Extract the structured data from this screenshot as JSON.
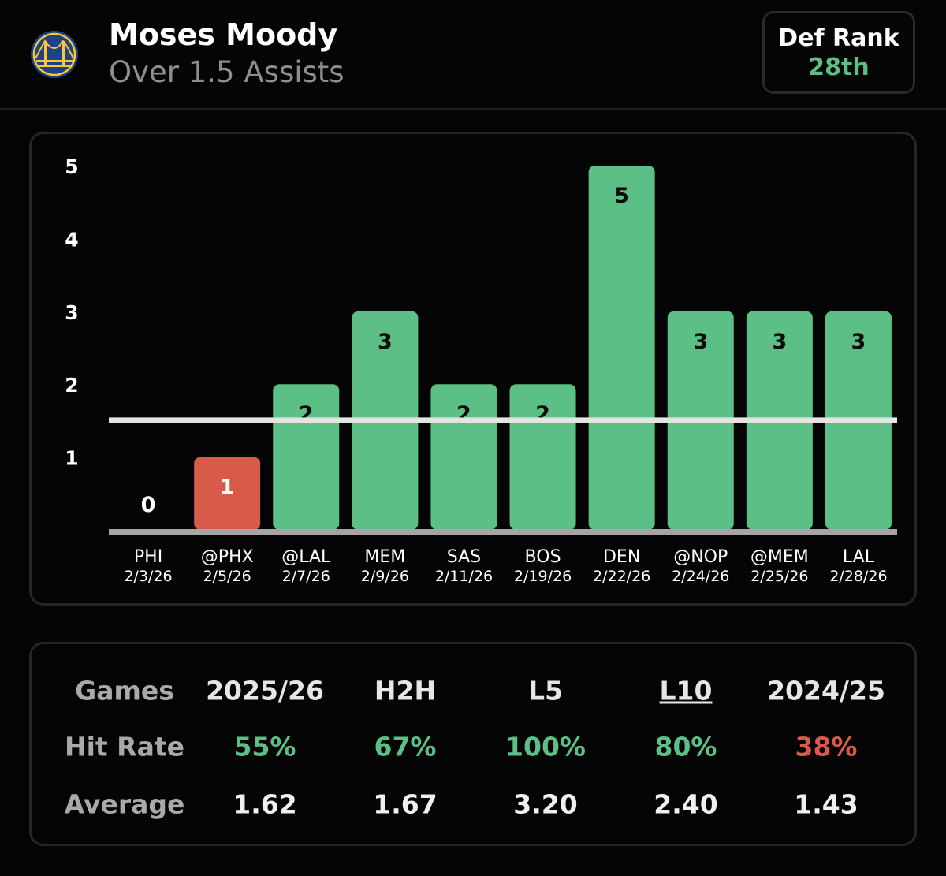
{
  "header": {
    "player_name": "Moses Moody",
    "prop_line": "Over 1.5 Assists",
    "team_logo_icon": "golden-gate-bridge-logo",
    "def_rank_label": "Def Rank",
    "def_rank_value": "28th",
    "def_rank_color": "#5cbf86"
  },
  "chart_data": {
    "type": "bar",
    "categories": [
      "PHI",
      "@PHX",
      "@LAL",
      "MEM",
      "SAS",
      "BOS",
      "DEN",
      "@NOP",
      "@MEM",
      "LAL"
    ],
    "dates": [
      "2/3/26",
      "2/5/26",
      "2/7/26",
      "2/9/26",
      "2/11/26",
      "2/19/26",
      "2/22/26",
      "2/24/26",
      "2/25/26",
      "2/28/26"
    ],
    "values": [
      0,
      1,
      2,
      3,
      2,
      2,
      5,
      3,
      3,
      3
    ],
    "value_labels": [
      "0",
      "1",
      "2",
      "3",
      "2",
      "2",
      "5",
      "3",
      "3",
      "3"
    ],
    "ylim": [
      0,
      5
    ],
    "yticks": [
      "1",
      "2",
      "3",
      "4",
      "5"
    ],
    "threshold": 1.5,
    "hit_color": "#5cbf86",
    "miss_color": "#d75a4a"
  },
  "stats": {
    "columns": [
      "2025/26",
      "H2H",
      "L5",
      "L10",
      "2024/25"
    ],
    "underlined_column": "L10",
    "rows": [
      {
        "label": "Games",
        "values": [
          "2025/26",
          "H2H",
          "L5",
          "L10",
          "2024/25"
        ]
      },
      {
        "label": "Hit Rate",
        "values": [
          "55%",
          "67%",
          "100%",
          "80%",
          "38%"
        ],
        "colors": [
          "#5cbf86",
          "#5cbf86",
          "#5cbf86",
          "#5cbf86",
          "#d75a4a"
        ]
      },
      {
        "label": "Average",
        "values": [
          "1.62",
          "1.67",
          "3.20",
          "2.40",
          "1.43"
        ]
      }
    ]
  }
}
